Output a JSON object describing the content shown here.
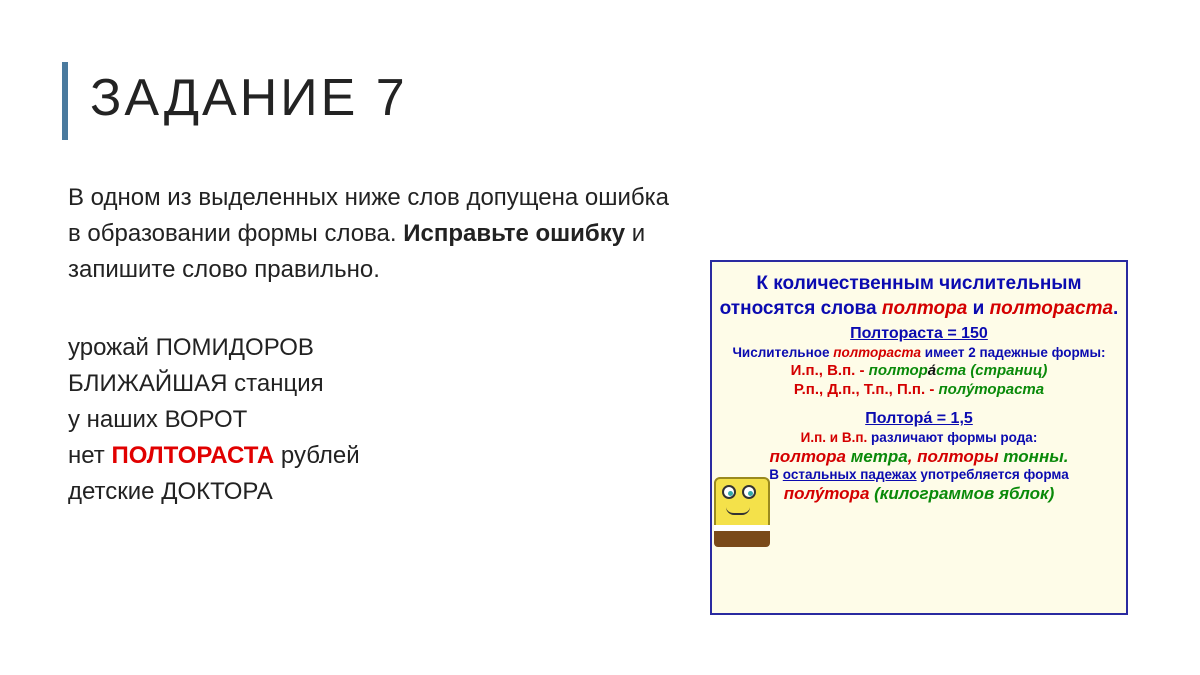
{
  "title": "ЗАДАНИЕ 7",
  "task": {
    "line1": "В одном из выделенных ниже слов допущена ошибка в образовании формы слова. ",
    "bold": "Исправьте ошибку",
    "line2": " и запишите слово правильно."
  },
  "options": {
    "o1a": "урожай ",
    "o1b": "ПОМИДОРОВ",
    "o2a": "БЛИЖАЙШАЯ",
    "o2b": " станция",
    "o3a": "у наших ",
    "o3b": "ВОРОТ",
    "o4a": "нет ",
    "o4b": "ПОЛТОРАСТА",
    "o4c": " рублей",
    "o5a": "детские ",
    "o5b": "ДОКТОРА"
  },
  "infobox": {
    "header_plain1": "К количественным числительным относятся слова ",
    "header_red1": "полтора",
    "header_plain2": " и ",
    "header_red2": "полтораста",
    "header_plain3": ".",
    "sub1": "Полтораста = 150",
    "line_small_a": "Числительное ",
    "line_small_red": "полтораста",
    "line_small_b": " имеет 2 падежные формы:",
    "case1_red": "И.п., В.п. - ",
    "case1_green": "полтор",
    "case1_black": "а́",
    "case1_green2": "ста (страниц)",
    "case2_red": "Р.п., Д.п., Т.п., П.п. - ",
    "case2_green": "полу́тораста",
    "sub2": "Полтора́ = 1,5",
    "line3_red": "И.п. и В.п.",
    "line3_b": " различают формы рода:",
    "poly_r1": "полтора ",
    "poly_g1": "метра",
    "poly_r2": ", полторы ",
    "poly_g2": "тонны.",
    "line4_a": "В ",
    "line4_u": "остальных падежах",
    "line4_b": " употребляется форма",
    "poly2_r": "полу́тора ",
    "poly2_g": "(килограммов яблок)"
  },
  "colors": {
    "accent": "#4a7a9e",
    "red": "#d40000",
    "blue": "#0b0bb0",
    "green": "#0a8a0a",
    "box_bg": "#fefce8"
  }
}
